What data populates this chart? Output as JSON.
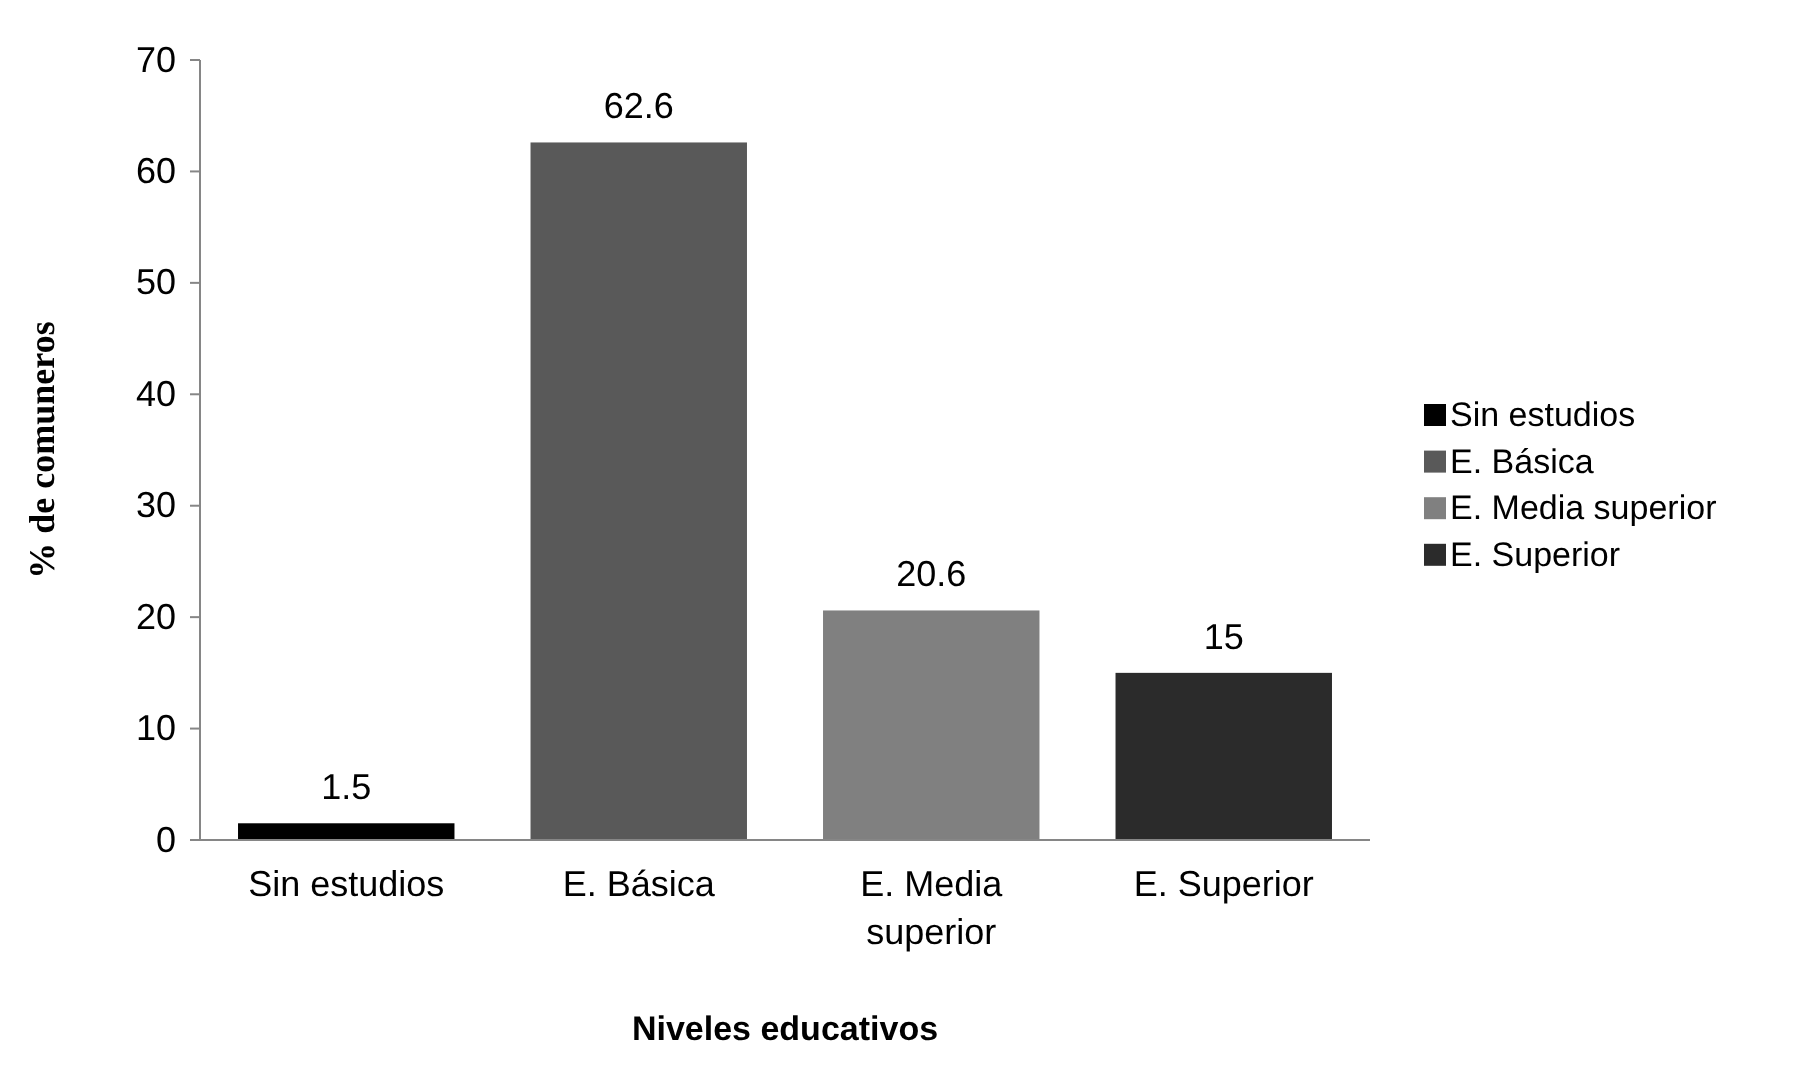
{
  "chart_data": {
    "type": "bar",
    "xlabel": "Niveles educativos",
    "ylabel": "% de comuneros",
    "categories": [
      "Sin estudios",
      "E. Básica",
      "E. Media superior",
      "E. Superior"
    ],
    "series": [
      {
        "name": "Sin estudios",
        "color": "#000000",
        "values": [
          1.5,
          null,
          null,
          null
        ]
      },
      {
        "name": "E. Básica",
        "color": "#595959",
        "values": [
          null,
          62.6,
          null,
          null
        ]
      },
      {
        "name": "E. Media superior",
        "color": "#808080",
        "values": [
          null,
          null,
          20.6,
          null
        ]
      },
      {
        "name": "E. Superior",
        "color": "#2b2b2b",
        "values": [
          null,
          null,
          null,
          15
        ]
      }
    ],
    "stacked": true,
    "ylim": [
      0,
      70
    ],
    "yticks": [
      0,
      10,
      20,
      30,
      40,
      50,
      60,
      70
    ],
    "data_labels": true,
    "legend": "right",
    "grid": false
  }
}
